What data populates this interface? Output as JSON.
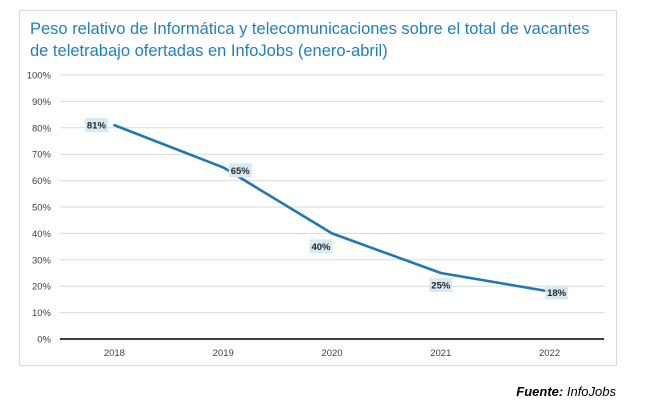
{
  "chart_data": {
    "type": "line",
    "title": "Peso relativo de Informática y telecomunicaciones sobre el total de vacantes de teletrabajo ofertadas en InfoJobs (enero-abril)",
    "categories": [
      "2018",
      "2019",
      "2020",
      "2021",
      "2022"
    ],
    "series": [
      {
        "values": [
          81,
          65,
          40,
          25,
          18
        ],
        "labels": [
          "81%",
          "65%",
          "40%",
          "25%",
          "18%"
        ]
      }
    ],
    "y_ticks": [
      "0%",
      "10%",
      "20%",
      "30%",
      "40%",
      "50%",
      "60%",
      "70%",
      "80%",
      "90%",
      "100%"
    ],
    "ylim": [
      0,
      100
    ],
    "grid": true,
    "line_color": "#1f77b4",
    "label_bg_color": "#d6e9f5"
  },
  "source": {
    "label": "Fuente:",
    "text": " InfoJobs"
  }
}
